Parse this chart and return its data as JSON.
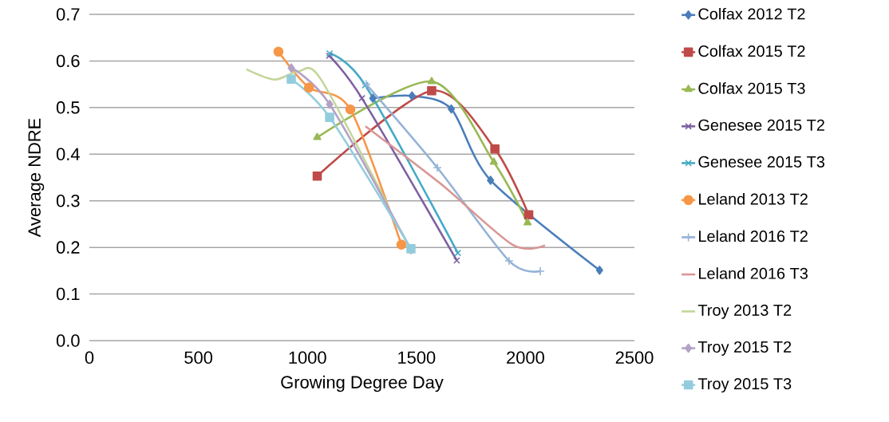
{
  "chart_data": {
    "type": "line",
    "xlabel": "Growing Degree Day",
    "ylabel": "Average NDRE",
    "xlim": [
      0,
      2500
    ],
    "ylim": [
      0,
      0.7
    ],
    "xticks": [
      0,
      500,
      1000,
      1500,
      2000,
      2500
    ],
    "yticks": [
      {
        "value": 0,
        "label": "0.0"
      },
      0.1,
      0.2,
      0.3,
      0.4,
      0.5,
      0.6,
      0.7
    ],
    "grid": "y",
    "legend": "right",
    "series": [
      {
        "name": "Colfax 2012 T2",
        "color": "#4a7ebb",
        "marker": "diamond",
        "x": [
          1300,
          1480,
          1660,
          1840,
          2340
        ],
        "values": [
          0.52,
          0.525,
          0.497,
          0.344,
          0.151
        ]
      },
      {
        "name": "Colfax 2015 T2",
        "color": "#be4b48",
        "marker": "square",
        "x": [
          1045,
          1570,
          1860,
          2015
        ],
        "values": [
          0.353,
          0.536,
          0.411,
          0.27
        ]
      },
      {
        "name": "Colfax 2015 T3",
        "color": "#98b954",
        "marker": "triangle",
        "x": [
          1045,
          1570,
          1855,
          2010
        ],
        "values": [
          0.436,
          0.556,
          0.383,
          0.253
        ]
      },
      {
        "name": "Genesee 2015 T2",
        "color": "#7d60a0",
        "marker": "cross",
        "x": [
          1100,
          1250,
          1685
        ],
        "values": [
          0.611,
          0.52,
          0.172
        ]
      },
      {
        "name": "Genesee 2015 T3",
        "color": "#46aac5",
        "marker": "cross",
        "x": [
          1102,
          1265,
          1690
        ],
        "values": [
          0.616,
          0.548,
          0.188
        ]
      },
      {
        "name": "Leland 2013 T2",
        "color": "#f79646",
        "marker": "circle",
        "x": [
          867,
          1007,
          1197,
          1431
        ],
        "values": [
          0.62,
          0.543,
          0.496,
          0.206
        ]
      },
      {
        "name": "Leland 2016 T2",
        "color": "#95b3d7",
        "marker": "plus",
        "x": [
          1270,
          1596,
          1925,
          2068
        ],
        "values": [
          0.55,
          0.371,
          0.171,
          0.149
        ]
      },
      {
        "name": "Leland 2016 T3",
        "color": "#d99694",
        "marker": "none",
        "x": [
          1266,
          1610,
          1940,
          2090
        ],
        "values": [
          0.46,
          0.337,
          0.206,
          0.204
        ]
      },
      {
        "name": "Troy 2013 T2",
        "color": "#c3d69b",
        "marker": "none",
        "x": [
          720,
          850,
          960,
          1060,
          1370
        ],
        "values": [
          0.582,
          0.56,
          0.578,
          0.562,
          0.289
        ]
      },
      {
        "name": "Troy 2015 T2",
        "color": "#b3a2c7",
        "marker": "diamond",
        "x": [
          926,
          1102,
          1475
        ],
        "values": [
          0.585,
          0.507,
          0.195
        ]
      },
      {
        "name": "Troy 2015 T3",
        "color": "#93cddd",
        "marker": "square",
        "x": [
          926,
          1102,
          1475
        ],
        "values": [
          0.561,
          0.479,
          0.197
        ]
      }
    ]
  }
}
